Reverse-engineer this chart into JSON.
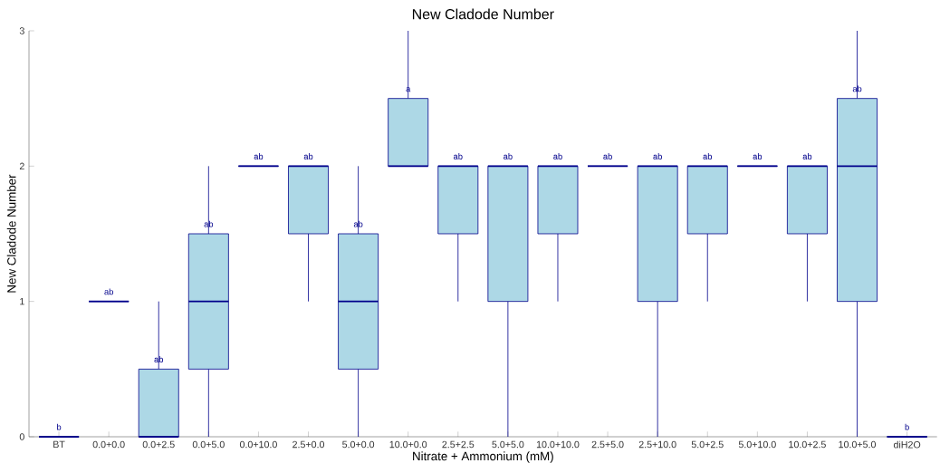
{
  "chart_data": {
    "type": "box",
    "title": "New Cladode Number",
    "xlabel": "Nitrate + Ammonium (mM)",
    "ylabel": "New Cladode Number",
    "categories": [
      "BT",
      "0.0+0.0",
      "0.0+2.5",
      "0.0+5.0",
      "0.0+10.0",
      "2.5+0.0",
      "5.0+0.0",
      "10.0+0.0",
      "2.5+2.5",
      "5.0+5.0",
      "10.0+10.0",
      "2.5+5.0",
      "2.5+10.0",
      "5.0+2.5",
      "5.0+10.0",
      "10.0+2.5",
      "10.0+5.0",
      "diH2O"
    ],
    "colors": [
      "#00008b",
      "#00008b",
      "#add8e6",
      "#add8e6",
      "#00008b",
      "#add8e6",
      "#add8e6",
      "#add8e6",
      "#add8e6",
      "#add8e6",
      "#add8e6",
      "#00008b",
      "#add8e6",
      "#add8e6",
      "#00008b",
      "#add8e6",
      "#add8e6",
      "#00008b"
    ],
    "boxes": [
      {
        "low": 0,
        "q1": 0,
        "median": 0,
        "q3": 0,
        "high": 0
      },
      {
        "low": 1,
        "q1": 1,
        "median": 1,
        "q3": 1,
        "high": 1
      },
      {
        "low": 0,
        "q1": 0,
        "median": 0,
        "q3": 0.5,
        "high": 1
      },
      {
        "low": 0,
        "q1": 0.5,
        "median": 1,
        "q3": 1.5,
        "high": 2
      },
      {
        "low": 2,
        "q1": 2,
        "median": 2,
        "q3": 2,
        "high": 2
      },
      {
        "low": 1,
        "q1": 1.5,
        "median": 2,
        "q3": 2,
        "high": 2
      },
      {
        "low": 0,
        "q1": 0.5,
        "median": 1,
        "q3": 1.5,
        "high": 2
      },
      {
        "low": 2,
        "q1": 2,
        "median": 2,
        "q3": 2.5,
        "high": 3
      },
      {
        "low": 1,
        "q1": 1.5,
        "median": 2,
        "q3": 2,
        "high": 2
      },
      {
        "low": 0,
        "q1": 1,
        "median": 2,
        "q3": 2,
        "high": 2
      },
      {
        "low": 1,
        "q1": 1.5,
        "median": 2,
        "q3": 2,
        "high": 2
      },
      {
        "low": 2,
        "q1": 2,
        "median": 2,
        "q3": 2,
        "high": 2
      },
      {
        "low": 0,
        "q1": 1,
        "median": 2,
        "q3": 2,
        "high": 2
      },
      {
        "low": 1,
        "q1": 1.5,
        "median": 2,
        "q3": 2,
        "high": 2
      },
      {
        "low": 2,
        "q1": 2,
        "median": 2,
        "q3": 2,
        "high": 2
      },
      {
        "low": 1,
        "q1": 1.5,
        "median": 2,
        "q3": 2,
        "high": 2
      },
      {
        "low": 0,
        "q1": 1,
        "median": 2,
        "q3": 2.5,
        "high": 3
      },
      {
        "low": 0,
        "q1": 0,
        "median": 0,
        "q3": 0,
        "high": 0
      }
    ],
    "ylim": [
      0,
      3
    ],
    "yticks": [
      0,
      1,
      2,
      3
    ],
    "grid": false,
    "annotations": [
      "b",
      "ab",
      "ab",
      "ab",
      "ab",
      "ab",
      "ab",
      "a",
      "ab",
      "ab",
      "ab",
      "ab",
      "ab",
      "ab",
      "ab",
      "ab",
      "ab",
      "b"
    ]
  }
}
